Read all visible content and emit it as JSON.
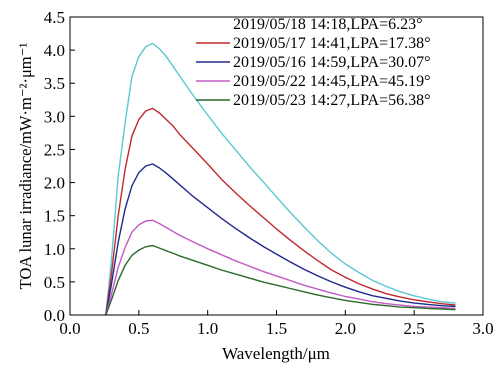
{
  "chart_data": {
    "type": "line",
    "xlabel": "Wavelength/μm",
    "ylabel": "TOA lunar irradiance/mW·m⁻²·μm⁻¹",
    "xlim": [
      0.0,
      3.0
    ],
    "ylim": [
      0.0,
      4.5
    ],
    "xticks": [
      "0.0",
      "0.5",
      "1.0",
      "1.5",
      "2.0",
      "2.5",
      "3.0"
    ],
    "yticks": [
      "0.0",
      "0.5",
      "1.0",
      "1.5",
      "2.0",
      "2.5",
      "3.0",
      "3.5",
      "4.0",
      "4.5"
    ],
    "grid": false,
    "legend_position": "top-right",
    "series": [
      {
        "name": "2019/05/18 14:18,LPA=6.23°",
        "color": "#5bc8d2",
        "x": [
          0.26,
          0.3,
          0.35,
          0.4,
          0.45,
          0.5,
          0.55,
          0.6,
          0.65,
          0.7,
          0.75,
          0.8,
          0.9,
          1.0,
          1.1,
          1.2,
          1.3,
          1.4,
          1.5,
          1.6,
          1.7,
          1.8,
          1.9,
          2.0,
          2.1,
          2.2,
          2.3,
          2.4,
          2.5,
          2.6,
          2.7,
          2.8
        ],
        "y": [
          0.0,
          0.8,
          2.1,
          2.9,
          3.6,
          3.9,
          4.05,
          4.1,
          4.02,
          3.9,
          3.75,
          3.6,
          3.3,
          3.02,
          2.75,
          2.5,
          2.25,
          2.02,
          1.78,
          1.55,
          1.33,
          1.12,
          0.93,
          0.77,
          0.64,
          0.52,
          0.43,
          0.35,
          0.29,
          0.24,
          0.2,
          0.18
        ]
      },
      {
        "name": "2019/05/17 14:41,LPA=17.38°",
        "color": "#c0282d",
        "x": [
          0.26,
          0.3,
          0.35,
          0.4,
          0.45,
          0.5,
          0.55,
          0.6,
          0.65,
          0.7,
          0.75,
          0.8,
          0.9,
          1.0,
          1.1,
          1.2,
          1.3,
          1.4,
          1.5,
          1.6,
          1.7,
          1.8,
          1.9,
          2.0,
          2.1,
          2.2,
          2.3,
          2.4,
          2.5,
          2.6,
          2.7,
          2.8
        ],
        "y": [
          0.0,
          0.6,
          1.5,
          2.2,
          2.7,
          2.95,
          3.08,
          3.12,
          3.05,
          2.95,
          2.85,
          2.72,
          2.5,
          2.28,
          2.05,
          1.85,
          1.66,
          1.48,
          1.3,
          1.13,
          0.97,
          0.82,
          0.68,
          0.57,
          0.47,
          0.39,
          0.32,
          0.27,
          0.23,
          0.2,
          0.17,
          0.15
        ]
      },
      {
        "name": "2019/05/16 14:59,LPA=30.07°",
        "color": "#1f2a8c",
        "x": [
          0.26,
          0.3,
          0.35,
          0.4,
          0.45,
          0.5,
          0.55,
          0.6,
          0.65,
          0.7,
          0.75,
          0.8,
          0.9,
          1.0,
          1.1,
          1.2,
          1.3,
          1.4,
          1.5,
          1.6,
          1.7,
          1.8,
          1.9,
          2.0,
          2.1,
          2.2,
          2.3,
          2.4,
          2.5,
          2.6,
          2.7,
          2.8
        ],
        "y": [
          0.0,
          0.45,
          1.1,
          1.6,
          1.95,
          2.15,
          2.25,
          2.28,
          2.22,
          2.14,
          2.05,
          1.96,
          1.78,
          1.62,
          1.46,
          1.31,
          1.17,
          1.04,
          0.92,
          0.8,
          0.69,
          0.59,
          0.5,
          0.42,
          0.35,
          0.29,
          0.25,
          0.21,
          0.18,
          0.16,
          0.14,
          0.13
        ]
      },
      {
        "name": "2019/05/22 14:45,LPA=45.19°",
        "color": "#c45bc4",
        "x": [
          0.26,
          0.3,
          0.35,
          0.4,
          0.45,
          0.5,
          0.55,
          0.6,
          0.65,
          0.7,
          0.75,
          0.8,
          0.9,
          1.0,
          1.1,
          1.2,
          1.3,
          1.4,
          1.5,
          1.6,
          1.7,
          1.8,
          1.9,
          2.0,
          2.1,
          2.2,
          2.3,
          2.4,
          2.5,
          2.6,
          2.7,
          2.8
        ],
        "y": [
          0.0,
          0.3,
          0.72,
          1.02,
          1.25,
          1.36,
          1.42,
          1.43,
          1.38,
          1.32,
          1.26,
          1.2,
          1.1,
          1.0,
          0.91,
          0.82,
          0.74,
          0.66,
          0.59,
          0.52,
          0.45,
          0.39,
          0.33,
          0.28,
          0.24,
          0.2,
          0.17,
          0.15,
          0.13,
          0.12,
          0.11,
          0.1
        ]
      },
      {
        "name": "2019/05/23 14:27,LPA=56.38°",
        "color": "#2a6b2a",
        "x": [
          0.26,
          0.3,
          0.35,
          0.4,
          0.45,
          0.5,
          0.55,
          0.6,
          0.65,
          0.7,
          0.75,
          0.8,
          0.9,
          1.0,
          1.1,
          1.2,
          1.3,
          1.4,
          1.5,
          1.6,
          1.7,
          1.8,
          1.9,
          2.0,
          2.1,
          2.2,
          2.3,
          2.4,
          2.5,
          2.6,
          2.7,
          2.8
        ],
        "y": [
          0.0,
          0.22,
          0.52,
          0.75,
          0.9,
          0.98,
          1.03,
          1.05,
          1.01,
          0.97,
          0.93,
          0.89,
          0.82,
          0.75,
          0.68,
          0.62,
          0.56,
          0.5,
          0.45,
          0.4,
          0.35,
          0.3,
          0.26,
          0.22,
          0.19,
          0.16,
          0.14,
          0.12,
          0.11,
          0.1,
          0.09,
          0.08
        ]
      }
    ]
  }
}
